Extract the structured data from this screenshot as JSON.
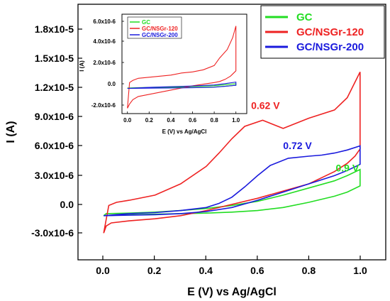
{
  "chart_data": [
    {
      "type": "line",
      "role": "main",
      "xlabel": "E (V) vs Ag/AgCl",
      "ylabel": "I (A)",
      "xlim": [
        -0.1,
        1.1
      ],
      "ylim": [
        -4.6e-06,
        2.03e-05
      ],
      "xticks": [
        0.0,
        0.2,
        0.4,
        0.6,
        0.8,
        1.0
      ],
      "xtick_labels": [
        "0.0",
        "0.2",
        "0.4",
        "0.6",
        "0.8",
        "1.0"
      ],
      "yticks": [
        -3e-06,
        0.0,
        3e-06,
        6e-06,
        9e-06,
        1.2e-05,
        1.5e-05,
        1.8e-05
      ],
      "ytick_labels": [
        "-3.0x10-6",
        "0.0",
        "3.0x10-6",
        "6.0x10-6",
        "9.0x10-6",
        "1.2x10-5",
        "1.5x10-5",
        "1.8x10-5"
      ],
      "legend": {
        "placement": "top-right",
        "entries": [
          "GC",
          "GC/NSGr-120",
          "GC/NSGr-200"
        ]
      },
      "series": [
        {
          "name": "GC",
          "color": "#22dd22",
          "x": [
            0.0,
            0.1,
            0.2,
            0.3,
            0.4,
            0.5,
            0.6,
            0.7,
            0.8,
            0.9,
            0.95,
            1.0,
            1.0,
            0.95,
            0.9,
            0.8,
            0.7,
            0.6,
            0.5,
            0.4,
            0.3,
            0.2,
            0.1,
            0.01,
            0.0
          ],
          "y": [
            -3e-07,
            -2e-07,
            -1.5e-07,
            -1e-07,
            -5e-08,
            5e-08,
            2e-07,
            5e-07,
            1e-06,
            1.6e-06,
            2e-06,
            2.6e-06,
            4.2e-06,
            3.6e-06,
            3.1e-06,
            2.4e-06,
            1.7e-06,
            1.1e-06,
            7e-07,
            4e-07,
            2e-07,
            5e-08,
            -5e-08,
            -1e-07,
            -3e-07
          ]
        },
        {
          "name": "GC/NSGr-120",
          "color": "#ee2222",
          "x": [
            0.0,
            0.01,
            0.03,
            0.1,
            0.2,
            0.3,
            0.4,
            0.5,
            0.6,
            0.7,
            0.8,
            0.9,
            0.95,
            0.98,
            1.0,
            1.0,
            0.95,
            0.9,
            0.8,
            0.7,
            0.62,
            0.55,
            0.5,
            0.45,
            0.4,
            0.3,
            0.2,
            0.1,
            0.05,
            0.02,
            0.0
          ],
          "y": [
            -2e-06,
            -1.3e-06,
            -1e-06,
            -8e-07,
            -6e-07,
            -3e-07,
            2e-07,
            8e-07,
            1.4e-06,
            2.1e-06,
            2.8e-06,
            4e-06,
            4.8e-06,
            5.5e-06,
            6.2e-06,
            1.37e-05,
            1.12e-05,
            1e-05,
            9.2e-06,
            8.2e-06,
            9e-06,
            8.4e-06,
            7.2e-06,
            5.8e-06,
            4.5e-06,
            2.8e-06,
            1.7e-06,
            1.2e-06,
            1e-06,
            7e-07,
            -2e-06
          ]
        },
        {
          "name": "GC/NSGr-200",
          "color": "#1a1add",
          "x": [
            0.0,
            0.1,
            0.2,
            0.3,
            0.4,
            0.5,
            0.6,
            0.7,
            0.8,
            0.9,
            0.95,
            1.0,
            1.0,
            0.95,
            0.9,
            0.85,
            0.8,
            0.72,
            0.65,
            0.6,
            0.55,
            0.5,
            0.45,
            0.4,
            0.3,
            0.2,
            0.1,
            0.0
          ],
          "y": [
            -3e-07,
            -2.5e-07,
            -2e-07,
            -1e-07,
            1e-07,
            5e-07,
            1.2e-06,
            2e-06,
            2.8e-06,
            3.6e-06,
            4.1e-06,
            4.7e-06,
            6.5e-06,
            6.1e-06,
            5.8e-06,
            5.6e-06,
            5.5e-06,
            5.3e-06,
            4.6e-06,
            3.6e-06,
            2.5e-06,
            1.5e-06,
            9e-07,
            5e-07,
            2e-07,
            0.0,
            -1e-07,
            -3e-07
          ]
        }
      ],
      "annotations": [
        {
          "text": "0.62 V",
          "color": "#ee2222",
          "x": 0.575,
          "y": 1.01e-05
        },
        {
          "text": "0.72 V",
          "color": "#1a1add",
          "x": 0.7,
          "y": 6.2e-06
        },
        {
          "text": "0.9 V",
          "color": "#22dd22",
          "x": 0.905,
          "y": 4e-06
        }
      ]
    },
    {
      "type": "line",
      "role": "inset",
      "xlabel": "E (V) vs Ag/AgCl",
      "ylabel": "I (A)",
      "xlim": [
        -0.05,
        1.1
      ],
      "ylim": [
        -2.5e-06,
        6.8e-06
      ],
      "xticks": [
        0.0,
        0.2,
        0.4,
        0.6,
        0.8,
        1.0
      ],
      "xtick_labels": [
        "0.0",
        "0.2",
        "0.4",
        "0.6",
        "0.8",
        "1.0"
      ],
      "yticks": [
        -2e-06,
        0.0,
        2e-06,
        4e-06,
        6e-06
      ],
      "ytick_labels": [
        "-2.0x10-6",
        "0.0",
        "2.0x10-6",
        "4.0x10-6",
        "6.0x10-6"
      ],
      "legend": {
        "placement": "top-left",
        "entries": [
          "GC",
          "GC/NSGr-120",
          "GC/NSGr-200"
        ]
      },
      "series": [
        {
          "name": "GC",
          "color": "#22dd22",
          "x": [
            0.0,
            0.2,
            0.4,
            0.6,
            0.8,
            0.9,
            1.0,
            1.0,
            0.9,
            0.8,
            0.6,
            0.4,
            0.2,
            0.0
          ],
          "y": [
            -1e-07,
            -8e-08,
            -6e-08,
            -4e-08,
            0.0,
            5e-08,
            1.5e-07,
            3e-07,
            2e-07,
            1.2e-07,
            5e-08,
            0.0,
            -4e-08,
            -1e-07
          ]
        },
        {
          "name": "GC/NSGr-120",
          "color": "#ee2222",
          "x": [
            0.0,
            0.02,
            0.05,
            0.1,
            0.2,
            0.3,
            0.4,
            0.5,
            0.6,
            0.7,
            0.8,
            0.85,
            0.9,
            0.95,
            0.98,
            1.0,
            1.0,
            0.97,
            0.92,
            0.85,
            0.8,
            0.7,
            0.6,
            0.5,
            0.4,
            0.3,
            0.2,
            0.1,
            0.05,
            0.02,
            0.0
          ],
          "y": [
            -2e-06,
            -1.6e-06,
            -1.2e-06,
            -9e-07,
            -7e-07,
            -5e-07,
            -3e-07,
            -1e-07,
            1e-07,
            2.5e-07,
            4e-07,
            5e-07,
            7e-07,
            1e-06,
            1.3e-06,
            1.5e-06,
            5.7e-06,
            4.6e-06,
            3.5e-06,
            2.7e-06,
            2e-06,
            1.6e-06,
            1.4e-06,
            1.3e-06,
            1.1e-06,
            1e-06,
            9e-07,
            8e-07,
            6e-07,
            4e-07,
            -2e-06
          ]
        },
        {
          "name": "GC/NSGr-200",
          "color": "#1a1add",
          "x": [
            0.0,
            0.2,
            0.4,
            0.6,
            0.8,
            0.9,
            1.0,
            1.0,
            0.9,
            0.8,
            0.6,
            0.4,
            0.2,
            0.0
          ],
          "y": [
            -1.5e-07,
            -1.2e-07,
            -1e-07,
            -8e-08,
            -3e-08,
            5e-08,
            1.5e-07,
            4.5e-07,
            3e-07,
            1.8e-07,
            8e-08,
            2e-08,
            -5e-08,
            -1.5e-07
          ]
        }
      ]
    }
  ]
}
